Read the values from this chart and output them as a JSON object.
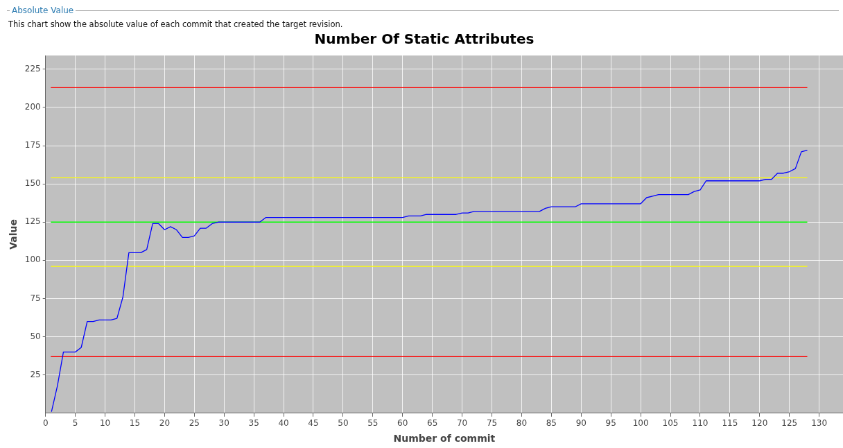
{
  "chart_data": {
    "type": "line",
    "title": "Number Of Static Attributes",
    "annotations": [
      "Absolute Value",
      "This chart show the absolute value of each commit that created the target revision."
    ],
    "xlabel": "Number of commit",
    "ylabel": "Value",
    "x": [
      1,
      2,
      3,
      4,
      5,
      6,
      7,
      8,
      9,
      10,
      11,
      12,
      13,
      14,
      15,
      16,
      17,
      18,
      19,
      20,
      21,
      22,
      23,
      24,
      25,
      26,
      27,
      28,
      29,
      30,
      31,
      32,
      33,
      34,
      35,
      36,
      37,
      38,
      39,
      40,
      41,
      42,
      43,
      44,
      45,
      46,
      47,
      48,
      49,
      50,
      51,
      52,
      53,
      54,
      55,
      56,
      57,
      58,
      59,
      60,
      61,
      62,
      63,
      64,
      65,
      66,
      67,
      68,
      69,
      70,
      71,
      72,
      73,
      74,
      75,
      76,
      77,
      78,
      79,
      80,
      81,
      82,
      83,
      84,
      85,
      86,
      87,
      88,
      89,
      90,
      91,
      92,
      93,
      94,
      95,
      96,
      97,
      98,
      99,
      100,
      101,
      102,
      103,
      104,
      105,
      106,
      107,
      108,
      109,
      110,
      111,
      112,
      113,
      114,
      115,
      116,
      117,
      118,
      119,
      120,
      121,
      122,
      123,
      124,
      125,
      126,
      127,
      128
    ],
    "series": [
      {
        "color": "#0000ff",
        "values": [
          1,
          18,
          40,
          40,
          40,
          43,
          60,
          60,
          61,
          61,
          61,
          62,
          76,
          105,
          105,
          105,
          107,
          124,
          124,
          120,
          122,
          120,
          115,
          115,
          116,
          121,
          121,
          124,
          125,
          125,
          125,
          125,
          125,
          125,
          125,
          125,
          128,
          128,
          128,
          128,
          128,
          128,
          128,
          128,
          128,
          128,
          128,
          128,
          128,
          128,
          128,
          128,
          128,
          128,
          128,
          128,
          128,
          128,
          128,
          128,
          129,
          129,
          129,
          130,
          130,
          130,
          130,
          130,
          130,
          131,
          131,
          132,
          132,
          132,
          132,
          132,
          132,
          132,
          132,
          132,
          132,
          132,
          132,
          134,
          135,
          135,
          135,
          135,
          135,
          137,
          137,
          137,
          137,
          137,
          137,
          137,
          137,
          137,
          137,
          137,
          141,
          142,
          143,
          143,
          143,
          143,
          143,
          143,
          145,
          146,
          152,
          152,
          152,
          152,
          152,
          152,
          152,
          152,
          152,
          152,
          153,
          153,
          157,
          157,
          158,
          160,
          171,
          172
        ]
      }
    ],
    "xlim": [
      0,
      134
    ],
    "xticks": [
      0,
      5,
      10,
      15,
      20,
      25,
      30,
      35,
      40,
      45,
      50,
      55,
      60,
      65,
      70,
      75,
      80,
      85,
      90,
      95,
      100,
      105,
      110,
      115,
      120,
      125,
      130
    ],
    "ylim": [
      0,
      234
    ],
    "yticks": [
      25,
      50,
      75,
      100,
      125,
      150,
      175,
      200,
      225
    ],
    "ref_lines": [
      {
        "axis": "y",
        "value": 213,
        "color": "#ff0000"
      },
      {
        "axis": "y",
        "value": 154,
        "color": "#ffff00"
      },
      {
        "axis": "y",
        "value": 125,
        "color": "#00ff00"
      },
      {
        "axis": "y",
        "value": 96,
        "color": "#ffff00"
      },
      {
        "axis": "y",
        "value": 37,
        "color": "#ff0000"
      }
    ],
    "grid": true,
    "legend": false,
    "marker": "none",
    "line_style": "solid"
  }
}
